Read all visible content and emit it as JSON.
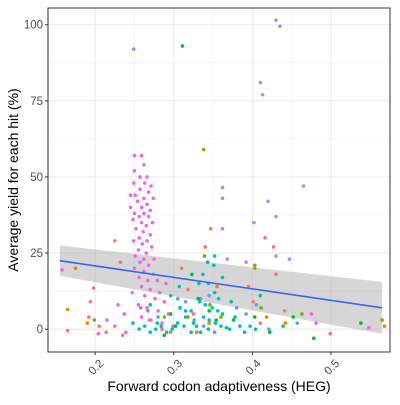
{
  "chart_data": {
    "type": "scatter",
    "title": "",
    "xlabel": "Forward codon adaptiveness (HEG)",
    "ylabel": "Average yield for each hit (%)",
    "xlim": [
      0.14,
      0.575
    ],
    "ylim": [
      -7.5,
      105.5
    ],
    "x_ticks": [
      0.2,
      0.3,
      0.4,
      0.5
    ],
    "x_tick_labels": [
      "0.2",
      "0.3",
      "0.4",
      "0.5"
    ],
    "y_ticks": [
      0,
      25,
      50,
      75,
      100
    ],
    "y_tick_labels": [
      "0",
      "25",
      "50",
      "75",
      "100"
    ],
    "x_tick_rotation_deg": 45,
    "grid": true,
    "legend": "none",
    "colors": {
      "panel_border": "#333333",
      "grid": "#ebebeb",
      "trend_line": "#3366ff",
      "confidence_band": "#999999",
      "pink": "#f564e3",
      "violet": "#b983ff",
      "cyan": "#00bfc4",
      "blue": "#619cff",
      "green": "#00ba38",
      "teal": "#00c19f",
      "red": "#f8766d",
      "orange": "#de8c00",
      "olive": "#7cae00"
    },
    "trend": {
      "method": "linear",
      "x": [
        0.155,
        0.565
      ],
      "y": [
        22.5,
        7.0
      ],
      "ci_lower": [
        17.5,
        -1.5
      ],
      "ci_upper": [
        27.5,
        15.5
      ]
    },
    "points": [
      {
        "x": 0.249,
        "y": 92,
        "c": "violet"
      },
      {
        "x": 0.311,
        "y": 93,
        "c": "green"
      },
      {
        "x": 0.43,
        "y": 101.5,
        "c": "violet"
      },
      {
        "x": 0.435,
        "y": 99.5,
        "c": "violet"
      },
      {
        "x": 0.41,
        "y": 81,
        "c": "violet"
      },
      {
        "x": 0.413,
        "y": 77,
        "c": "violet"
      },
      {
        "x": 0.338,
        "y": 59,
        "c": "olive"
      },
      {
        "x": 0.465,
        "y": 47,
        "c": "violet"
      },
      {
        "x": 0.362,
        "y": 46.5,
        "c": "violet"
      },
      {
        "x": 0.362,
        "y": 43,
        "c": "violet"
      },
      {
        "x": 0.42,
        "y": 42,
        "c": "violet"
      },
      {
        "x": 0.43,
        "y": 37,
        "c": "violet"
      },
      {
        "x": 0.402,
        "y": 35,
        "c": "violet"
      },
      {
        "x": 0.362,
        "y": 33,
        "c": "violet"
      },
      {
        "x": 0.368,
        "y": 23,
        "c": "violet"
      },
      {
        "x": 0.43,
        "y": 24,
        "c": "violet"
      },
      {
        "x": 0.447,
        "y": 23,
        "c": "violet"
      },
      {
        "x": 0.392,
        "y": 22,
        "c": "violet"
      },
      {
        "x": 0.25,
        "y": 57,
        "c": "pink"
      },
      {
        "x": 0.259,
        "y": 57,
        "c": "pink"
      },
      {
        "x": 0.262,
        "y": 54,
        "c": "pink"
      },
      {
        "x": 0.25,
        "y": 52,
        "c": "pink"
      },
      {
        "x": 0.257,
        "y": 50,
        "c": "pink"
      },
      {
        "x": 0.266,
        "y": 50,
        "c": "pink"
      },
      {
        "x": 0.249,
        "y": 48,
        "c": "pink"
      },
      {
        "x": 0.263,
        "y": 48,
        "c": "pink"
      },
      {
        "x": 0.271,
        "y": 47,
        "c": "pink"
      },
      {
        "x": 0.257,
        "y": 46,
        "c": "pink"
      },
      {
        "x": 0.268,
        "y": 45,
        "c": "pink"
      },
      {
        "x": 0.245,
        "y": 44,
        "c": "pink"
      },
      {
        "x": 0.251,
        "y": 44,
        "c": "pink"
      },
      {
        "x": 0.262,
        "y": 43,
        "c": "pink"
      },
      {
        "x": 0.274,
        "y": 43,
        "c": "pink"
      },
      {
        "x": 0.254,
        "y": 42,
        "c": "pink"
      },
      {
        "x": 0.266,
        "y": 41,
        "c": "pink"
      },
      {
        "x": 0.245,
        "y": 40,
        "c": "pink"
      },
      {
        "x": 0.259,
        "y": 40,
        "c": "pink"
      },
      {
        "x": 0.27,
        "y": 39,
        "c": "pink"
      },
      {
        "x": 0.25,
        "y": 38,
        "c": "pink"
      },
      {
        "x": 0.262,
        "y": 38,
        "c": "pink"
      },
      {
        "x": 0.256,
        "y": 37,
        "c": "pink"
      },
      {
        "x": 0.268,
        "y": 37,
        "c": "pink"
      },
      {
        "x": 0.248,
        "y": 36,
        "c": "pink"
      },
      {
        "x": 0.259,
        "y": 35,
        "c": "pink"
      },
      {
        "x": 0.273,
        "y": 35,
        "c": "pink"
      },
      {
        "x": 0.265,
        "y": 34,
        "c": "pink"
      },
      {
        "x": 0.252,
        "y": 33,
        "c": "pink"
      },
      {
        "x": 0.261,
        "y": 32,
        "c": "pink"
      },
      {
        "x": 0.27,
        "y": 31,
        "c": "pink"
      },
      {
        "x": 0.256,
        "y": 30,
        "c": "pink"
      },
      {
        "x": 0.266,
        "y": 29,
        "c": "pink"
      },
      {
        "x": 0.249,
        "y": 29,
        "c": "pink"
      },
      {
        "x": 0.26,
        "y": 28,
        "c": "pink"
      },
      {
        "x": 0.272,
        "y": 27,
        "c": "pink"
      },
      {
        "x": 0.255,
        "y": 26,
        "c": "pink"
      },
      {
        "x": 0.265,
        "y": 25,
        "c": "pink"
      },
      {
        "x": 0.251,
        "y": 24,
        "c": "pink"
      },
      {
        "x": 0.262,
        "y": 23,
        "c": "pink"
      },
      {
        "x": 0.275,
        "y": 23,
        "c": "pink"
      },
      {
        "x": 0.257,
        "y": 22,
        "c": "pink"
      },
      {
        "x": 0.268,
        "y": 21,
        "c": "pink"
      },
      {
        "x": 0.25,
        "y": 20,
        "c": "pink"
      },
      {
        "x": 0.262,
        "y": 19,
        "c": "pink"
      },
      {
        "x": 0.274,
        "y": 18,
        "c": "pink"
      },
      {
        "x": 0.256,
        "y": 17,
        "c": "pink"
      },
      {
        "x": 0.267,
        "y": 16,
        "c": "pink"
      },
      {
        "x": 0.279,
        "y": 16,
        "c": "pink"
      },
      {
        "x": 0.29,
        "y": 15,
        "c": "pink"
      },
      {
        "x": 0.259,
        "y": 14,
        "c": "pink"
      },
      {
        "x": 0.27,
        "y": 13,
        "c": "pink"
      },
      {
        "x": 0.282,
        "y": 12,
        "c": "pink"
      },
      {
        "x": 0.247,
        "y": 12,
        "c": "pink"
      },
      {
        "x": 0.263,
        "y": 11,
        "c": "pink"
      },
      {
        "x": 0.276,
        "y": 10,
        "c": "pink"
      },
      {
        "x": 0.288,
        "y": 9,
        "c": "pink"
      },
      {
        "x": 0.255,
        "y": 8,
        "c": "pink"
      },
      {
        "x": 0.266,
        "y": 7,
        "c": "pink"
      },
      {
        "x": 0.28,
        "y": 6,
        "c": "pink"
      },
      {
        "x": 0.293,
        "y": 5,
        "c": "pink"
      },
      {
        "x": 0.259,
        "y": 4,
        "c": "pink"
      },
      {
        "x": 0.271,
        "y": 3,
        "c": "pink"
      },
      {
        "x": 0.285,
        "y": 2,
        "c": "pink"
      },
      {
        "x": 0.229,
        "y": 8,
        "c": "pink"
      },
      {
        "x": 0.237,
        "y": 5,
        "c": "pink"
      },
      {
        "x": 0.215,
        "y": 3,
        "c": "pink"
      },
      {
        "x": 0.225,
        "y": 1,
        "c": "pink"
      },
      {
        "x": 0.299,
        "y": 1,
        "c": "pink"
      },
      {
        "x": 0.239,
        "y": -1,
        "c": "pink"
      },
      {
        "x": 0.204,
        "y": -1.5,
        "c": "pink"
      },
      {
        "x": 0.165,
        "y": -0.5,
        "c": "pink"
      },
      {
        "x": 0.158,
        "y": 19.5,
        "c": "pink"
      },
      {
        "x": 0.548,
        "y": 0.5,
        "c": "pink"
      },
      {
        "x": 0.481,
        "y": 2,
        "c": "pink"
      },
      {
        "x": 0.475,
        "y": 5,
        "c": "pink"
      },
      {
        "x": 0.225,
        "y": 29,
        "c": "red"
      },
      {
        "x": 0.232,
        "y": 22,
        "c": "red"
      },
      {
        "x": 0.198,
        "y": 13.5,
        "c": "red"
      },
      {
        "x": 0.194,
        "y": 9,
        "c": "red"
      },
      {
        "x": 0.192,
        "y": 4,
        "c": "red"
      },
      {
        "x": 0.205,
        "y": 1,
        "c": "red"
      },
      {
        "x": 0.214,
        "y": -1,
        "c": "red"
      },
      {
        "x": 0.31,
        "y": 20,
        "c": "red"
      },
      {
        "x": 0.318,
        "y": 13,
        "c": "red"
      },
      {
        "x": 0.325,
        "y": 5,
        "c": "red"
      },
      {
        "x": 0.285,
        "y": 0,
        "c": "red"
      },
      {
        "x": 0.296,
        "y": -1,
        "c": "red"
      },
      {
        "x": 0.395,
        "y": 14,
        "c": "red"
      },
      {
        "x": 0.401,
        "y": 9,
        "c": "red"
      },
      {
        "x": 0.41,
        "y": 2,
        "c": "red"
      },
      {
        "x": 0.43,
        "y": 18,
        "c": "red"
      },
      {
        "x": 0.416,
        "y": 30,
        "c": "red"
      },
      {
        "x": 0.427,
        "y": 27,
        "c": "red"
      },
      {
        "x": 0.347,
        "y": 33,
        "c": "red"
      },
      {
        "x": 0.34,
        "y": 27,
        "c": "red"
      },
      {
        "x": 0.441,
        "y": 6,
        "c": "red"
      },
      {
        "x": 0.499,
        "y": -1.5,
        "c": "red"
      },
      {
        "x": 0.258,
        "y": 7,
        "c": "red"
      },
      {
        "x": 0.269,
        "y": 3,
        "c": "red"
      },
      {
        "x": 0.235,
        "y": -2,
        "c": "red"
      },
      {
        "x": 0.351,
        "y": 21,
        "c": "cyan"
      },
      {
        "x": 0.337,
        "y": 18,
        "c": "cyan"
      },
      {
        "x": 0.344,
        "y": 15,
        "c": "cyan"
      },
      {
        "x": 0.352,
        "y": 12,
        "c": "cyan"
      },
      {
        "x": 0.357,
        "y": 10,
        "c": "cyan"
      },
      {
        "x": 0.333,
        "y": 9,
        "c": "cyan"
      },
      {
        "x": 0.34,
        "y": 8,
        "c": "cyan"
      },
      {
        "x": 0.349,
        "y": 7,
        "c": "cyan"
      },
      {
        "x": 0.356,
        "y": 6,
        "c": "cyan"
      },
      {
        "x": 0.362,
        "y": 5,
        "c": "cyan"
      },
      {
        "x": 0.338,
        "y": 4,
        "c": "cyan"
      },
      {
        "x": 0.345,
        "y": 3,
        "c": "cyan"
      },
      {
        "x": 0.353,
        "y": 2,
        "c": "cyan"
      },
      {
        "x": 0.36,
        "y": 1,
        "c": "cyan"
      },
      {
        "x": 0.367,
        "y": 0.5,
        "c": "cyan"
      },
      {
        "x": 0.371,
        "y": 0,
        "c": "cyan"
      },
      {
        "x": 0.329,
        "y": 1,
        "c": "cyan"
      },
      {
        "x": 0.322,
        "y": -1,
        "c": "cyan"
      },
      {
        "x": 0.313,
        "y": 1,
        "c": "cyan"
      },
      {
        "x": 0.305,
        "y": 2,
        "c": "cyan"
      },
      {
        "x": 0.298,
        "y": 0,
        "c": "cyan"
      },
      {
        "x": 0.291,
        "y": -1,
        "c": "cyan"
      },
      {
        "x": 0.284,
        "y": 1,
        "c": "cyan"
      },
      {
        "x": 0.277,
        "y": 0,
        "c": "cyan"
      },
      {
        "x": 0.27,
        "y": -1,
        "c": "cyan"
      },
      {
        "x": 0.263,
        "y": 1,
        "c": "cyan"
      },
      {
        "x": 0.256,
        "y": 0,
        "c": "cyan"
      },
      {
        "x": 0.322,
        "y": 6,
        "c": "cyan"
      },
      {
        "x": 0.315,
        "y": 4,
        "c": "cyan"
      },
      {
        "x": 0.308,
        "y": 7,
        "c": "cyan"
      },
      {
        "x": 0.373,
        "y": 9,
        "c": "cyan"
      },
      {
        "x": 0.378,
        "y": 4,
        "c": "cyan"
      },
      {
        "x": 0.384,
        "y": 1,
        "c": "cyan"
      },
      {
        "x": 0.39,
        "y": -1,
        "c": "cyan"
      },
      {
        "x": 0.397,
        "y": 1,
        "c": "cyan"
      },
      {
        "x": 0.404,
        "y": 0,
        "c": "cyan"
      },
      {
        "x": 0.296,
        "y": 11,
        "c": "cyan"
      },
      {
        "x": 0.307,
        "y": 14,
        "c": "cyan"
      },
      {
        "x": 0.362,
        "y": 17,
        "c": "cyan"
      },
      {
        "x": 0.352,
        "y": 24,
        "c": "cyan"
      },
      {
        "x": 0.305,
        "y": 10,
        "c": "blue"
      },
      {
        "x": 0.315,
        "y": 9,
        "c": "blue"
      },
      {
        "x": 0.334,
        "y": 10,
        "c": "blue"
      },
      {
        "x": 0.345,
        "y": 11,
        "c": "blue"
      },
      {
        "x": 0.326,
        "y": 3,
        "c": "blue"
      },
      {
        "x": 0.338,
        "y": 1,
        "c": "blue"
      },
      {
        "x": 0.352,
        "y": -1,
        "c": "blue"
      },
      {
        "x": 0.28,
        "y": 4,
        "c": "blue"
      },
      {
        "x": 0.267,
        "y": 6,
        "c": "blue"
      },
      {
        "x": 0.38,
        "y": 7,
        "c": "blue"
      },
      {
        "x": 0.392,
        "y": 5,
        "c": "blue"
      },
      {
        "x": 0.405,
        "y": 8,
        "c": "blue"
      },
      {
        "x": 0.421,
        "y": 0,
        "c": "blue"
      },
      {
        "x": 0.457,
        "y": 2,
        "c": "blue"
      },
      {
        "x": 0.323,
        "y": 18,
        "c": "green"
      },
      {
        "x": 0.331,
        "y": 10,
        "c": "green"
      },
      {
        "x": 0.345,
        "y": 6,
        "c": "green"
      },
      {
        "x": 0.354,
        "y": 3,
        "c": "green"
      },
      {
        "x": 0.296,
        "y": 5,
        "c": "green"
      },
      {
        "x": 0.302,
        "y": 1,
        "c": "green"
      },
      {
        "x": 0.376,
        "y": 3,
        "c": "green"
      },
      {
        "x": 0.403,
        "y": 4,
        "c": "green"
      },
      {
        "x": 0.422,
        "y": -1,
        "c": "green"
      },
      {
        "x": 0.452,
        "y": 4,
        "c": "green"
      },
      {
        "x": 0.478,
        "y": -3,
        "c": "green"
      },
      {
        "x": 0.538,
        "y": 2,
        "c": "green"
      },
      {
        "x": 0.288,
        "y": -2,
        "c": "green"
      },
      {
        "x": 0.315,
        "y": 6,
        "c": "teal"
      },
      {
        "x": 0.325,
        "y": 2,
        "c": "teal"
      },
      {
        "x": 0.334,
        "y": -1,
        "c": "teal"
      },
      {
        "x": 0.344,
        "y": 0,
        "c": "teal"
      },
      {
        "x": 0.279,
        "y": 2,
        "c": "teal"
      },
      {
        "x": 0.27,
        "y": 8,
        "c": "teal"
      },
      {
        "x": 0.248,
        "y": 2,
        "c": "teal"
      },
      {
        "x": 0.439,
        "y": 1,
        "c": "teal"
      },
      {
        "x": 0.41,
        "y": 11,
        "c": "teal"
      },
      {
        "x": 0.332,
        "y": 15,
        "c": "teal"
      },
      {
        "x": 0.343,
        "y": 22,
        "c": "teal"
      },
      {
        "x": 0.165,
        "y": 6.5,
        "c": "orange"
      },
      {
        "x": 0.175,
        "y": 20,
        "c": "orange"
      },
      {
        "x": 0.19,
        "y": 2,
        "c": "orange"
      },
      {
        "x": 0.345,
        "y": 2,
        "c": "orange"
      },
      {
        "x": 0.355,
        "y": 14,
        "c": "orange"
      },
      {
        "x": 0.403,
        "y": 20,
        "c": "orange"
      },
      {
        "x": 0.418,
        "y": 4,
        "c": "orange"
      },
      {
        "x": 0.442,
        "y": 2,
        "c": "orange"
      },
      {
        "x": 0.568,
        "y": 1,
        "c": "orange"
      },
      {
        "x": 0.329,
        "y": -1,
        "c": "orange"
      },
      {
        "x": 0.199,
        "y": 3,
        "c": "olive"
      },
      {
        "x": 0.339,
        "y": 24,
        "c": "olive"
      },
      {
        "x": 0.346,
        "y": 8,
        "c": "olive"
      },
      {
        "x": 0.36,
        "y": 4,
        "c": "olive"
      },
      {
        "x": 0.403,
        "y": 21,
        "c": "olive"
      },
      {
        "x": 0.411,
        "y": 7,
        "c": "olive"
      },
      {
        "x": 0.463,
        "y": 5,
        "c": "olive"
      },
      {
        "x": 0.565,
        "y": 3,
        "c": "olive"
      },
      {
        "x": 0.288,
        "y": 4,
        "c": "olive"
      },
      {
        "x": 0.318,
        "y": 4,
        "c": "olive"
      }
    ]
  }
}
